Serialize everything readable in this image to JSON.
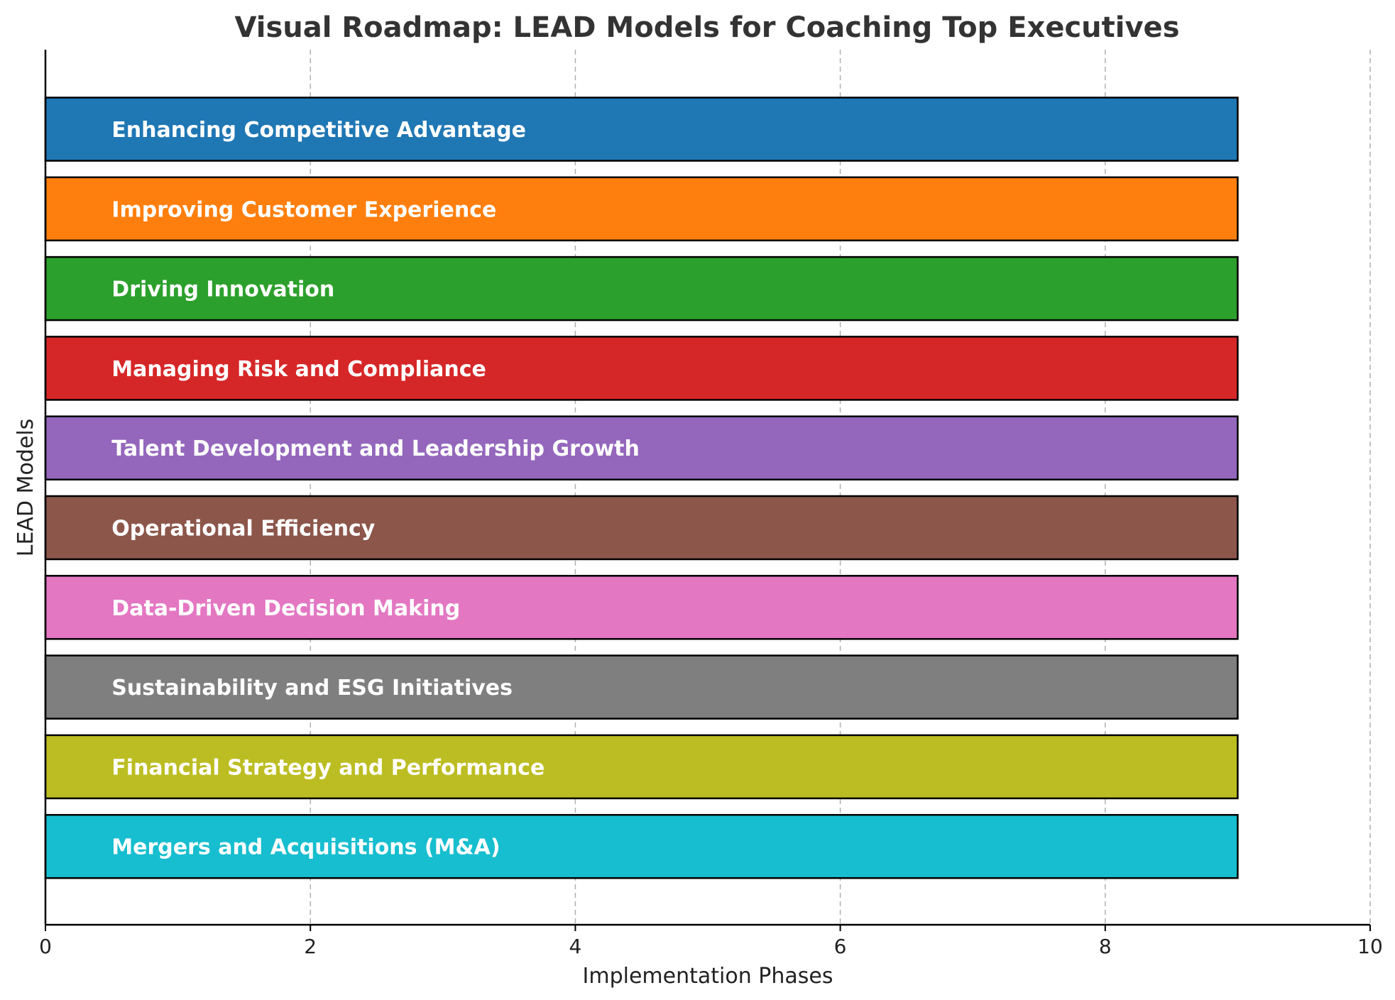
{
  "chart_data": {
    "type": "bar",
    "orientation": "horizontal",
    "title": "Visual Roadmap: LEAD Models for Coaching Top Executives",
    "xlabel": "Implementation Phases",
    "ylabel": "LEAD Models",
    "xlim": [
      0,
      10
    ],
    "xticks": [
      "0",
      "2",
      "4",
      "6",
      "8",
      "10"
    ],
    "grid": "vertical dashed",
    "categories": [
      "Enhancing Competitive Advantage",
      "Improving Customer Experience",
      "Driving Innovation",
      "Managing Risk and Compliance",
      "Talent Development and Leadership Growth",
      "Operational Efficiency",
      "Data-Driven Decision Making",
      "Sustainability and ESG Initiatives",
      "Financial Strategy and Performance",
      "Mergers and Acquisitions (M&A)"
    ],
    "values": [
      9,
      9,
      9,
      9,
      9,
      9,
      9,
      9,
      9,
      9
    ],
    "colors": [
      "#1f77b4",
      "#ff7f0e",
      "#2ca02c",
      "#d62728",
      "#9467bd",
      "#8c564b",
      "#e377c2",
      "#7f7f7f",
      "#bcbd22",
      "#17becf"
    ]
  }
}
